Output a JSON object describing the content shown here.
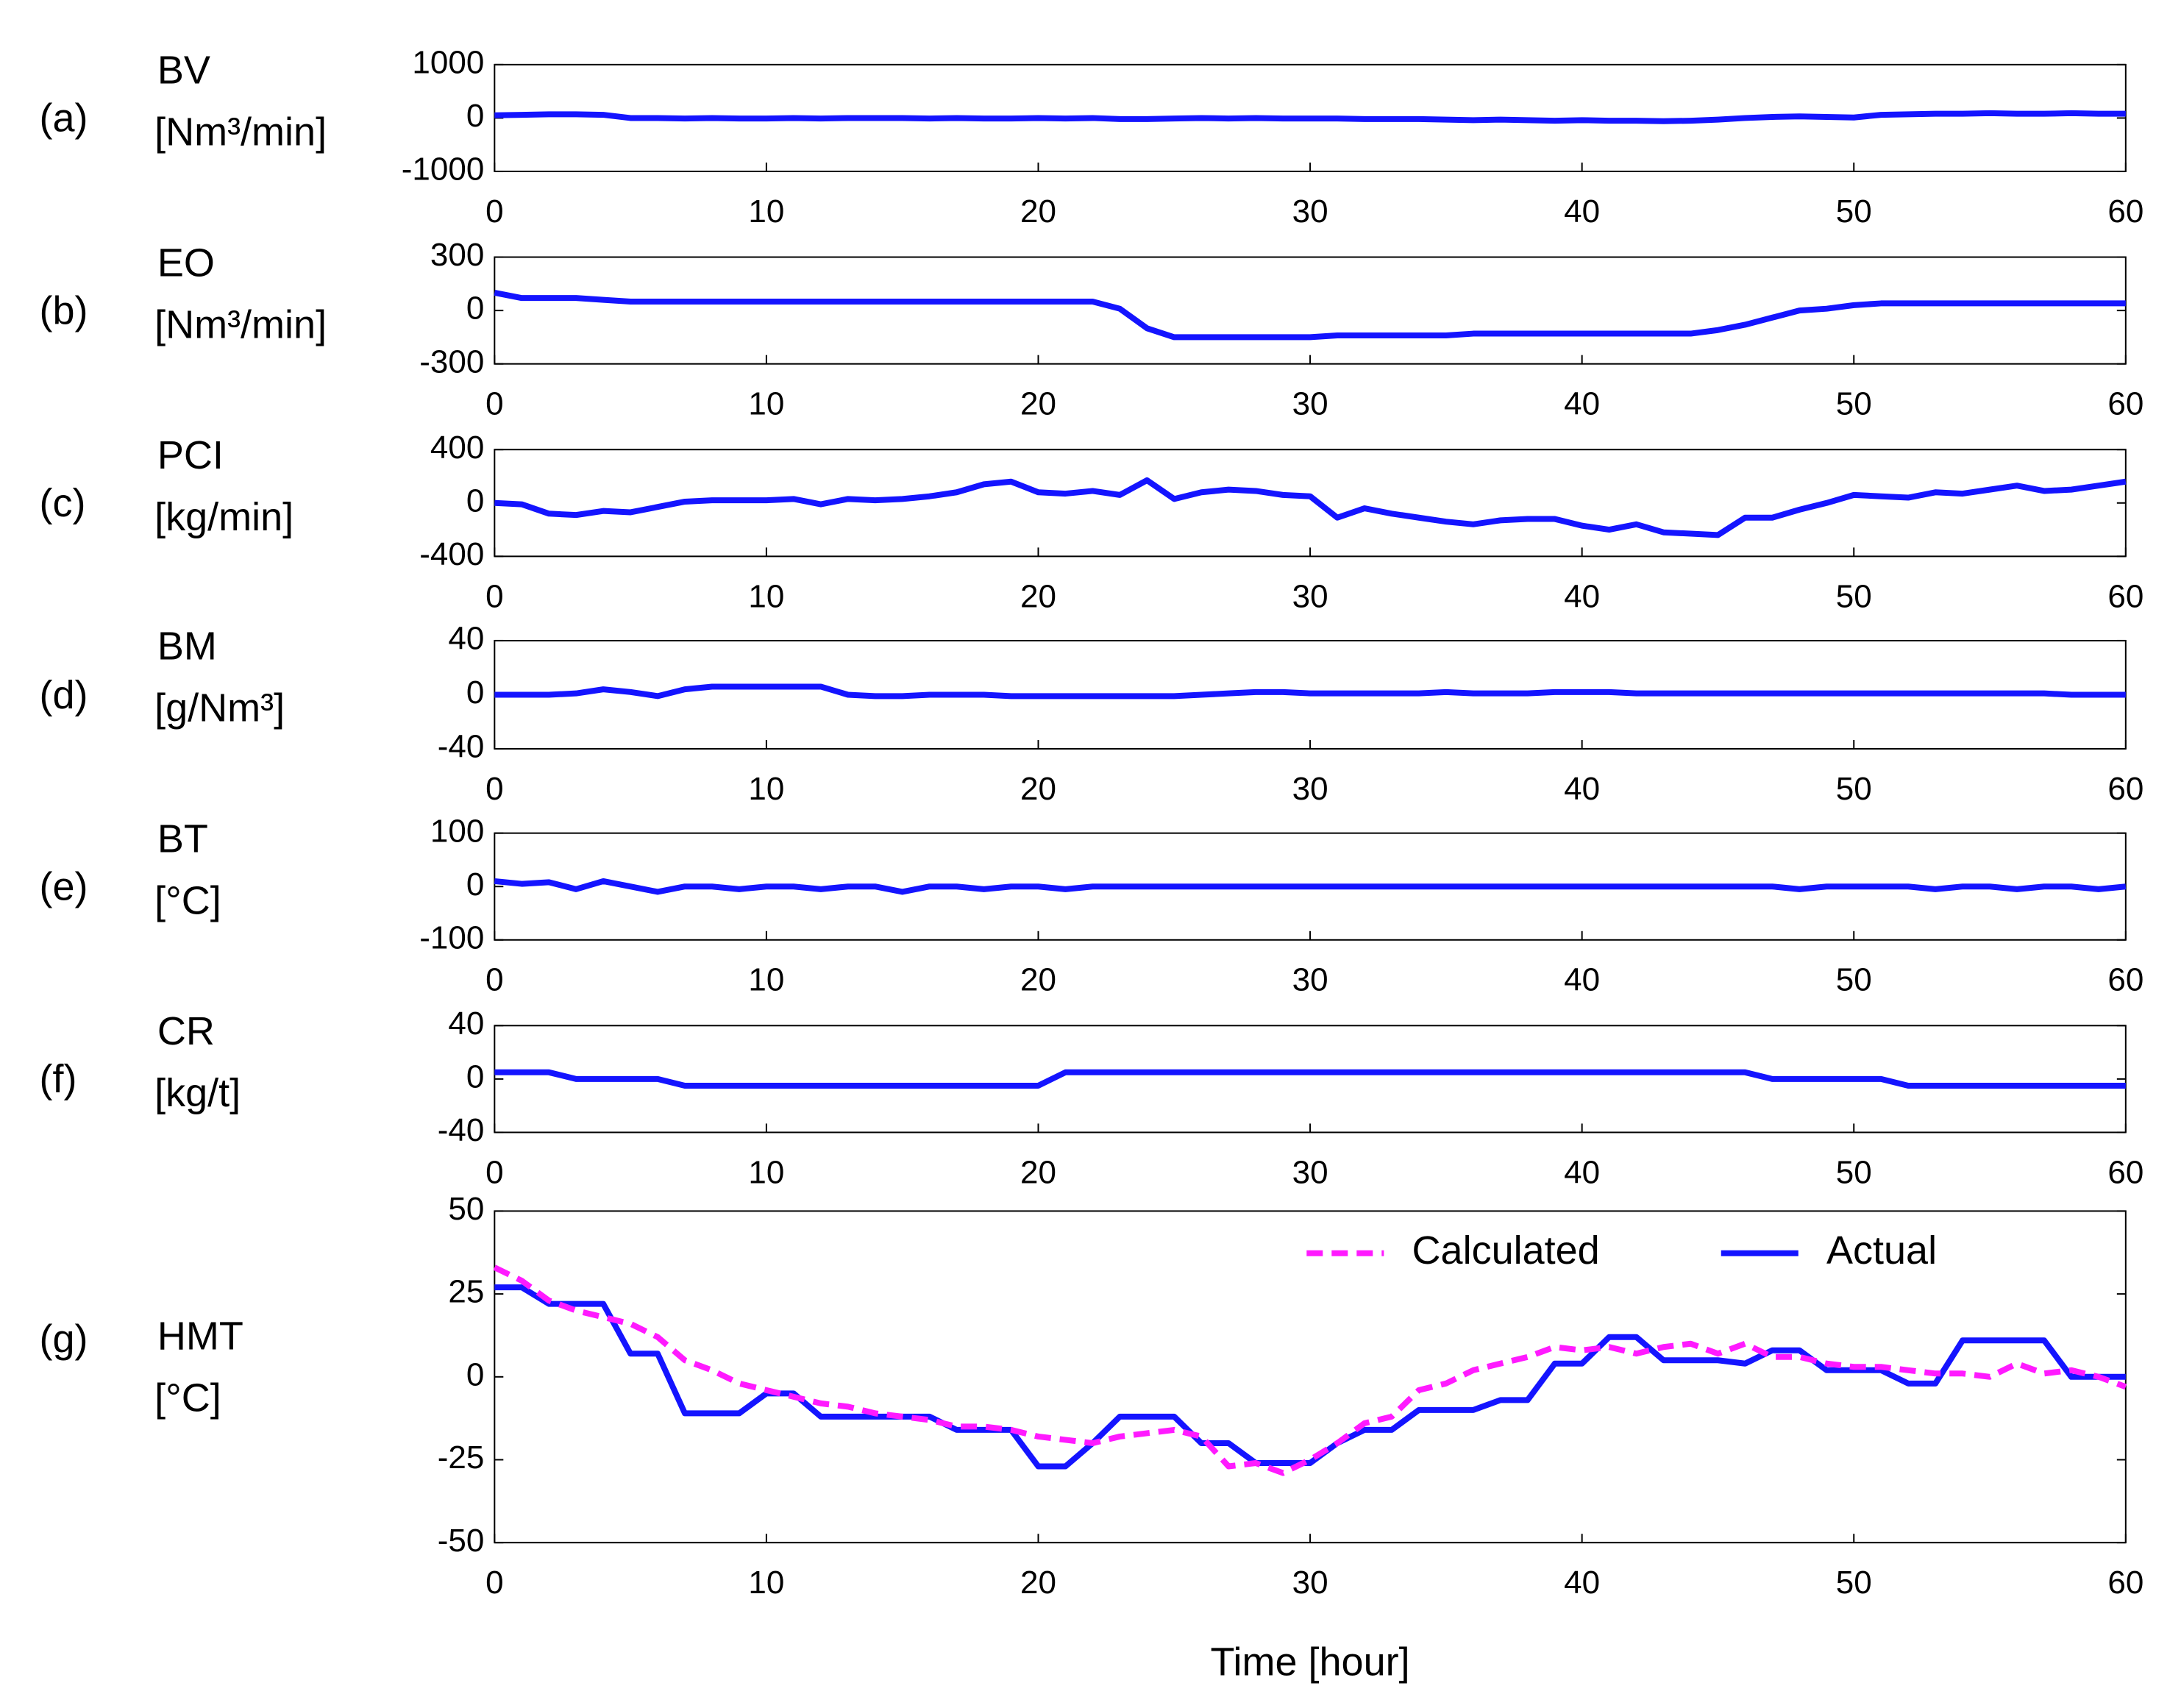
{
  "chart_data": [
    {
      "type": "line",
      "label": "(a)",
      "ylabel": [
        "BV",
        "[Nm³/min]"
      ],
      "xlim": [
        0,
        60
      ],
      "xticks": [
        0,
        10,
        20,
        30,
        40,
        50,
        60
      ],
      "ylim": [
        -1000,
        1000
      ],
      "yticks": [
        -1000,
        0,
        1000
      ],
      "x": [
        0,
        1,
        2,
        3,
        4,
        5,
        6,
        7,
        8,
        9,
        10,
        11,
        12,
        13,
        14,
        15,
        16,
        17,
        18,
        19,
        20,
        21,
        22,
        23,
        24,
        25,
        26,
        27,
        28,
        29,
        30,
        31,
        32,
        33,
        34,
        35,
        36,
        37,
        38,
        39,
        40,
        41,
        42,
        43,
        44,
        45,
        46,
        47,
        48,
        49,
        50,
        51,
        52,
        53,
        54,
        55,
        56,
        57,
        58,
        59,
        60
      ],
      "series": [
        {
          "color": "#1414ff",
          "values": [
            50,
            60,
            70,
            70,
            60,
            0,
            0,
            -10,
            0,
            -10,
            -10,
            0,
            -10,
            0,
            0,
            0,
            -10,
            0,
            -10,
            -10,
            0,
            -10,
            0,
            -20,
            -20,
            -10,
            0,
            -10,
            0,
            -10,
            -10,
            -10,
            -20,
            -20,
            -20,
            -30,
            -40,
            -30,
            -40,
            -50,
            -40,
            -50,
            -50,
            -60,
            -50,
            -30,
            0,
            20,
            30,
            20,
            10,
            60,
            70,
            80,
            80,
            90,
            80,
            80,
            90,
            80,
            80
          ]
        }
      ]
    },
    {
      "type": "line",
      "label": "(b)",
      "ylabel": [
        "EO",
        "[Nm³/min]"
      ],
      "xlim": [
        0,
        60
      ],
      "xticks": [
        0,
        10,
        20,
        30,
        40,
        50,
        60
      ],
      "ylim": [
        -300,
        300
      ],
      "yticks": [
        -300,
        0,
        300
      ],
      "x": [
        0,
        1,
        2,
        3,
        4,
        5,
        6,
        7,
        8,
        9,
        10,
        11,
        12,
        13,
        14,
        15,
        16,
        17,
        18,
        19,
        20,
        21,
        22,
        23,
        24,
        25,
        26,
        27,
        28,
        29,
        30,
        31,
        32,
        33,
        34,
        35,
        36,
        37,
        38,
        39,
        40,
        41,
        42,
        43,
        44,
        45,
        46,
        47,
        48,
        49,
        50,
        51,
        52,
        53,
        54,
        55,
        56,
        57,
        58,
        59,
        60
      ],
      "series": [
        {
          "color": "#1414ff",
          "values": [
            100,
            70,
            70,
            70,
            60,
            50,
            50,
            50,
            50,
            50,
            50,
            50,
            50,
            50,
            50,
            50,
            50,
            50,
            50,
            50,
            50,
            50,
            50,
            10,
            -100,
            -150,
            -150,
            -150,
            -150,
            -150,
            -150,
            -140,
            -140,
            -140,
            -140,
            -140,
            -130,
            -130,
            -130,
            -130,
            -130,
            -130,
            -130,
            -130,
            -130,
            -110,
            -80,
            -40,
            0,
            10,
            30,
            40,
            40,
            40,
            40,
            40,
            40,
            40,
            40,
            40,
            40
          ]
        }
      ]
    },
    {
      "type": "line",
      "label": "(c)",
      "ylabel": [
        "PCI",
        "[kg/min]"
      ],
      "xlim": [
        0,
        60
      ],
      "xticks": [
        0,
        10,
        20,
        30,
        40,
        50,
        60
      ],
      "ylim": [
        -400,
        400
      ],
      "yticks": [
        -400,
        0,
        400
      ],
      "x": [
        0,
        1,
        2,
        3,
        4,
        5,
        6,
        7,
        8,
        9,
        10,
        11,
        12,
        13,
        14,
        15,
        16,
        17,
        18,
        19,
        20,
        21,
        22,
        23,
        24,
        25,
        26,
        27,
        28,
        29,
        30,
        31,
        32,
        33,
        34,
        35,
        36,
        37,
        38,
        39,
        40,
        41,
        42,
        43,
        44,
        45,
        46,
        47,
        48,
        49,
        50,
        51,
        52,
        53,
        54,
        55,
        56,
        57,
        58,
        59,
        60
      ],
      "series": [
        {
          "color": "#1414ff",
          "values": [
            0,
            -10,
            -80,
            -90,
            -60,
            -70,
            -30,
            10,
            20,
            20,
            20,
            30,
            -10,
            30,
            20,
            30,
            50,
            80,
            140,
            160,
            80,
            70,
            90,
            60,
            170,
            30,
            80,
            100,
            90,
            60,
            50,
            -110,
            -40,
            -80,
            -110,
            -140,
            -160,
            -130,
            -120,
            -120,
            -170,
            -200,
            -160,
            -220,
            -230,
            -240,
            -110,
            -110,
            -50,
            0,
            60,
            50,
            40,
            80,
            70,
            100,
            130,
            90,
            100,
            130,
            160
          ]
        }
      ]
    },
    {
      "type": "line",
      "label": "(d)",
      "ylabel": [
        "BM",
        "[g/Nm³]"
      ],
      "xlim": [
        0,
        60
      ],
      "xticks": [
        0,
        10,
        20,
        30,
        40,
        50,
        60
      ],
      "ylim": [
        -40,
        40
      ],
      "yticks": [
        -40,
        0,
        40
      ],
      "x": [
        0,
        1,
        2,
        3,
        4,
        5,
        6,
        7,
        8,
        9,
        10,
        11,
        12,
        13,
        14,
        15,
        16,
        17,
        18,
        19,
        20,
        21,
        22,
        23,
        24,
        25,
        26,
        27,
        28,
        29,
        30,
        31,
        32,
        33,
        34,
        35,
        36,
        37,
        38,
        39,
        40,
        41,
        42,
        43,
        44,
        45,
        46,
        47,
        48,
        49,
        50,
        51,
        52,
        53,
        54,
        55,
        56,
        57,
        58,
        59,
        60
      ],
      "series": [
        {
          "color": "#1414ff",
          "values": [
            0,
            0,
            0,
            1,
            4,
            2,
            -1,
            4,
            6,
            6,
            6,
            6,
            6,
            0,
            -1,
            -1,
            0,
            0,
            0,
            -1,
            -1,
            -1,
            -1,
            -1,
            -1,
            -1,
            0,
            1,
            2,
            2,
            1,
            1,
            1,
            1,
            1,
            2,
            1,
            1,
            1,
            2,
            2,
            2,
            1,
            1,
            1,
            1,
            1,
            1,
            1,
            1,
            1,
            1,
            1,
            1,
            1,
            1,
            1,
            1,
            0,
            0,
            0
          ]
        }
      ]
    },
    {
      "type": "line",
      "label": "(e)",
      "ylabel": [
        "BT",
        "[°C]"
      ],
      "xlim": [
        0,
        60
      ],
      "xticks": [
        0,
        10,
        20,
        30,
        40,
        50,
        60
      ],
      "ylim": [
        -100,
        100
      ],
      "yticks": [
        -100,
        0,
        100
      ],
      "x": [
        0,
        1,
        2,
        3,
        4,
        5,
        6,
        7,
        8,
        9,
        10,
        11,
        12,
        13,
        14,
        15,
        16,
        17,
        18,
        19,
        20,
        21,
        22,
        23,
        24,
        25,
        26,
        27,
        28,
        29,
        30,
        31,
        32,
        33,
        34,
        35,
        36,
        37,
        38,
        39,
        40,
        41,
        42,
        43,
        44,
        45,
        46,
        47,
        48,
        49,
        50,
        51,
        52,
        53,
        54,
        55,
        56,
        57,
        58,
        59,
        60
      ],
      "series": [
        {
          "color": "#1414ff",
          "values": [
            10,
            5,
            8,
            -5,
            10,
            0,
            -10,
            0,
            0,
            -5,
            0,
            0,
            -5,
            0,
            0,
            -10,
            0,
            0,
            -5,
            0,
            0,
            -5,
            0,
            0,
            0,
            0,
            0,
            0,
            0,
            0,
            0,
            0,
            0,
            0,
            0,
            0,
            0,
            0,
            0,
            0,
            0,
            0,
            0,
            0,
            0,
            0,
            0,
            0,
            -5,
            0,
            0,
            0,
            0,
            -5,
            0,
            0,
            -5,
            0,
            0,
            -5,
            0
          ]
        }
      ]
    },
    {
      "type": "line",
      "label": "(f)",
      "ylabel": [
        "CR",
        "[kg/t]"
      ],
      "xlim": [
        0,
        60
      ],
      "xticks": [
        0,
        10,
        20,
        30,
        40,
        50,
        60
      ],
      "ylim": [
        -40,
        40
      ],
      "yticks": [
        -40,
        0,
        40
      ],
      "x": [
        0,
        1,
        2,
        3,
        4,
        5,
        6,
        7,
        8,
        9,
        10,
        11,
        12,
        13,
        14,
        15,
        16,
        17,
        18,
        19,
        20,
        21,
        22,
        23,
        24,
        25,
        26,
        27,
        28,
        29,
        30,
        31,
        32,
        33,
        34,
        35,
        36,
        37,
        38,
        39,
        40,
        41,
        42,
        43,
        44,
        45,
        46,
        47,
        48,
        49,
        50,
        51,
        52,
        53,
        54,
        55,
        56,
        57,
        58,
        59,
        60
      ],
      "series": [
        {
          "color": "#1414ff",
          "values": [
            5,
            5,
            5,
            0,
            0,
            0,
            0,
            -5,
            -5,
            -5,
            -5,
            -5,
            -5,
            -5,
            -5,
            -5,
            -5,
            -5,
            -5,
            -5,
            -5,
            5,
            5,
            5,
            5,
            5,
            5,
            5,
            5,
            5,
            5,
            5,
            5,
            5,
            5,
            5,
            5,
            5,
            5,
            5,
            5,
            5,
            5,
            5,
            5,
            5,
            5,
            0,
            0,
            0,
            0,
            0,
            -5,
            -5,
            -5,
            -5,
            -5,
            -5,
            -5,
            -5,
            -5
          ]
        }
      ]
    },
    {
      "type": "line",
      "label": "(g)",
      "ylabel": [
        "HMT",
        "[°C]"
      ],
      "xlabel": "Time [hour]",
      "legend": "upper right",
      "xlim": [
        0,
        60
      ],
      "xticks": [
        0,
        10,
        20,
        30,
        40,
        50,
        60
      ],
      "ylim": [
        -50,
        50
      ],
      "yticks": [
        -50,
        -25,
        0,
        25,
        50
      ],
      "x": [
        0,
        1,
        2,
        3,
        4,
        5,
        6,
        7,
        8,
        9,
        10,
        11,
        12,
        13,
        14,
        15,
        16,
        17,
        18,
        19,
        20,
        21,
        22,
        23,
        24,
        25,
        26,
        27,
        28,
        29,
        30,
        31,
        32,
        33,
        34,
        35,
        36,
        37,
        38,
        39,
        40,
        41,
        42,
        43,
        44,
        45,
        46,
        47,
        48,
        49,
        50,
        51,
        52,
        53,
        54,
        55,
        56,
        57,
        58,
        59,
        60
      ],
      "series": [
        {
          "name": "Actual",
          "color": "#1414ff",
          "values": [
            27,
            27,
            22,
            22,
            22,
            7,
            7,
            -11,
            -11,
            -11,
            -5,
            -5,
            -12,
            -12,
            -12,
            -12,
            -12,
            -16,
            -16,
            -16,
            -27,
            -27,
            -20,
            -12,
            -12,
            -12,
            -20,
            -20,
            -26,
            -26,
            -26,
            -20,
            -16,
            -16,
            -10,
            -10,
            -10,
            -7,
            -7,
            4,
            4,
            12,
            12,
            5,
            5,
            5,
            4,
            8,
            8,
            2,
            2,
            2,
            -2,
            -2,
            11,
            11,
            11,
            11,
            0,
            0,
            0
          ]
        },
        {
          "name": "Calculated",
          "color": "#ff1aff",
          "dashed": true,
          "values": [
            33,
            29,
            23,
            20,
            18,
            16,
            12,
            5,
            2,
            -2,
            -4,
            -6,
            -8,
            -9,
            -11,
            -12,
            -13,
            -15,
            -15,
            -16,
            -18,
            -19,
            -20,
            -18,
            -17,
            -16,
            -18,
            -27,
            -26,
            -29,
            -25,
            -20,
            -14,
            -12,
            -4,
            -2,
            2,
            4,
            6,
            9,
            8,
            9,
            7,
            9,
            10,
            7,
            10,
            6,
            6,
            4,
            3,
            3,
            2,
            1,
            1,
            0,
            4,
            1,
            2,
            0,
            -3
          ]
        }
      ]
    }
  ]
}
